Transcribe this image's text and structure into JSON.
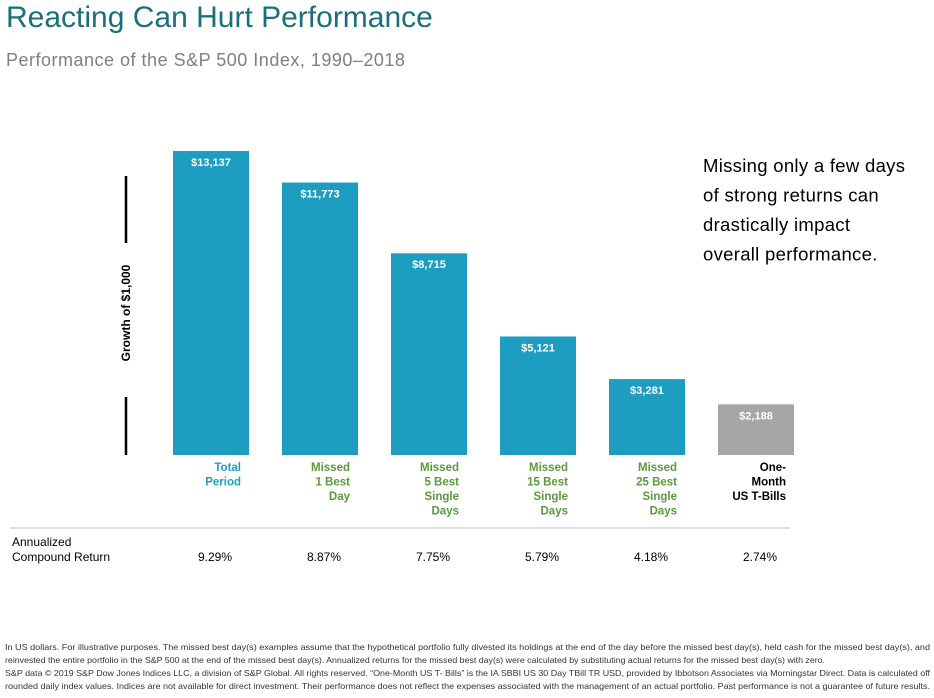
{
  "chart_data": {
    "type": "bar",
    "title": "Reacting Can Hurt Performance",
    "subtitle": "Performance of the S&P 500 Index, 1990–2018",
    "y_label": "Growth of $1,000",
    "categories": [
      [
        "Total",
        "Period"
      ],
      [
        "Missed",
        "1 Best",
        "Day"
      ],
      [
        "Missed",
        "5 Best",
        "Single",
        "Days"
      ],
      [
        "Missed",
        "15 Best",
        "Single",
        "Days"
      ],
      [
        "Missed",
        "25 Best",
        "Single",
        "Days"
      ],
      [
        "One-",
        "Month",
        "US T-Bills"
      ]
    ],
    "category_colors": [
      "#1d9ec0",
      "#5a9a3c",
      "#5a9a3c",
      "#5a9a3c",
      "#5a9a3c",
      "#000000"
    ],
    "values": [
      13137,
      11773,
      8715,
      5121,
      3281,
      2188
    ],
    "value_labels": [
      "$13,137",
      "$11,773",
      "$8,715",
      "$5,121",
      "$3,281",
      "$2,188"
    ],
    "colors": [
      "#1d9ec0",
      "#1d9ec0",
      "#1d9ec0",
      "#1d9ec0",
      "#1d9ec0",
      "#a6a6a6"
    ],
    "ylim": [
      0,
      14000
    ],
    "annotation": [
      "Missing only a few days",
      "of strong returns can",
      "drastically impact",
      "overall performance."
    ],
    "annualized": {
      "label": [
        "Annualized",
        "Compound Return"
      ],
      "values": [
        9.29,
        8.87,
        7.75,
        5.79,
        4.18,
        2.74
      ],
      "value_labels": [
        "9.29%",
        "8.87%",
        "7.75%",
        "5.79%",
        "4.18%",
        "2.74%"
      ]
    },
    "footnote": [
      "In US dollars. For illustrative purposes. The missed best day(s) examples assume that the hypothetical portfolio fully divested its holdings at the end of the day before the missed best day(s), held cash for the missed best day(s), and",
      "reinvested the entire portfolio in the S&P 500 at the end of the missed best day(s). Annualized returns for the missed best day(s) were calculated by substituting actual returns for the missed best day(s) with zero.",
      "S&P data © 2019 S&P Dow Jones Indices LLC, a division of S&P Global. All rights reserved. “One-Month US T- Bills” is the IA SBBI US 30 Day TBill TR USD, provided by Ibbotson Associates via Morningstar Direct. Data is calculated off",
      "rounded daily index values. Indices are not available for direct investment. Their performance does not reflect the expenses associated with the management of an actual portfolio. Past performance is not a guarantee of future results."
    ]
  }
}
